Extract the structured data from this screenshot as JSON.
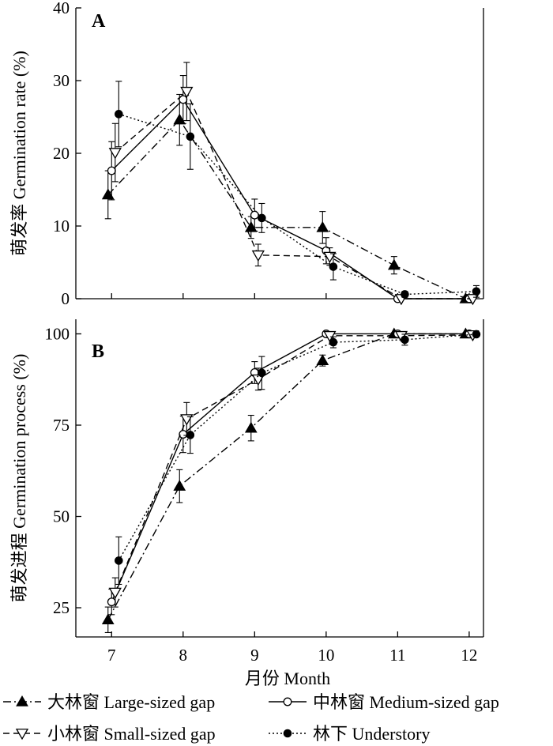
{
  "figure": {
    "xlabel": "月份 Month",
    "legend_placement": "bottom"
  },
  "chart_data": [
    {
      "type": "line",
      "panel": "A",
      "ylabel": "萌发率 Germination rate (%)",
      "ylim": [
        0,
        40
      ],
      "yticks": [
        0,
        10,
        20,
        30,
        40
      ],
      "xlim": [
        6.5,
        12.2
      ],
      "xticks": [
        7,
        8,
        9,
        10,
        11,
        12
      ],
      "grid": false,
      "series": [
        {
          "name": "大林窗 Large-sized gap",
          "marker": "triangle-filled",
          "dash": "10,4,2,4",
          "offset": -0.05,
          "x": [
            7,
            8,
            9,
            10,
            11,
            12
          ],
          "y": [
            14.3,
            24.6,
            9.8,
            9.8,
            4.6,
            0
          ],
          "err": [
            3.3,
            3.5,
            1.5,
            2.2,
            1.2,
            0.3
          ]
        },
        {
          "name": "中林窗 Medium-sized gap",
          "marker": "circle-open",
          "dash": "",
          "offset": 0,
          "x": [
            7,
            8,
            9,
            10,
            11,
            12
          ],
          "y": [
            17.6,
            27.4,
            11.5,
            6.6,
            0,
            0
          ],
          "err": [
            4,
            3.3,
            2.2,
            1.8,
            0.3,
            0.3
          ]
        },
        {
          "name": "小林窗 Small-sized gap",
          "marker": "triangle-down-open",
          "dash": "8,5",
          "offset": 0.05,
          "x": [
            7,
            8,
            9,
            10,
            11,
            12
          ],
          "y": [
            20.1,
            28.5,
            6,
            5.8,
            0,
            0
          ],
          "err": [
            4,
            4,
            1.5,
            1.2,
            0.3,
            0.3
          ]
        },
        {
          "name": "林下 Understory",
          "marker": "circle-filled",
          "dash": "2,3",
          "offset": 0.1,
          "x": [
            7,
            8,
            9,
            10,
            11,
            12
          ],
          "y": [
            25.4,
            22.3,
            11.1,
            4.4,
            0.6,
            1
          ],
          "err": [
            4.5,
            4.5,
            2,
            1.8,
            0.4,
            0.8
          ]
        }
      ]
    },
    {
      "type": "line",
      "panel": "B",
      "ylabel": "萌发进程 Germination process (%)",
      "ylim": [
        17,
        104
      ],
      "yticks": [
        25,
        50,
        75,
        100
      ],
      "xlim": [
        6.5,
        12.2
      ],
      "xticks": [
        7,
        8,
        9,
        10,
        11,
        12
      ],
      "grid": false,
      "series": [
        {
          "name": "大林窗 Large-sized gap",
          "marker": "triangle-filled",
          "dash": "10,4,2,4",
          "offset": -0.05,
          "x": [
            7,
            8,
            9,
            10,
            11,
            12
          ],
          "y": [
            21.7,
            58.3,
            74.2,
            92.7,
            100,
            100
          ],
          "err": [
            3.5,
            4.5,
            3.5,
            1.5,
            0.3,
            0.3
          ]
        },
        {
          "name": "中林窗 Medium-sized gap",
          "marker": "circle-open",
          "dash": "",
          "offset": 0,
          "x": [
            7,
            8,
            9,
            10,
            11,
            12
          ],
          "y": [
            26.6,
            72.5,
            89.4,
            100,
            100,
            100
          ],
          "err": [
            3.5,
            5,
            3,
            0.5,
            0.3,
            0.3
          ]
        },
        {
          "name": "小林窗 Small-sized gap",
          "marker": "triangle-down-open",
          "dash": "8,5",
          "offset": 0.05,
          "x": [
            7,
            8,
            9,
            10,
            11,
            12
          ],
          "y": [
            29.2,
            76.7,
            87.6,
            99.5,
            99.5,
            99.7
          ],
          "err": [
            4,
            4.5,
            3,
            0.5,
            0.4,
            0.3
          ]
        },
        {
          "name": "林下 Understory",
          "marker": "circle-filled",
          "dash": "2,3",
          "offset": 0.1,
          "x": [
            7,
            8,
            9,
            10,
            11,
            12
          ],
          "y": [
            37.9,
            72.3,
            89.3,
            97.7,
            98.4,
            99.9
          ],
          "err": [
            6.5,
            5,
            4.5,
            1.5,
            1.5,
            0.3
          ]
        }
      ]
    }
  ]
}
